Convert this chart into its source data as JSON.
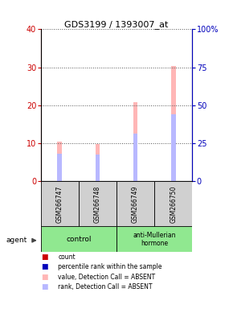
{
  "title": "GDS3199 / 1393007_at",
  "samples": [
    "GSM266747",
    "GSM266748",
    "GSM266749",
    "GSM266750"
  ],
  "bar_absent_value": [
    10.3,
    9.8,
    20.7,
    30.3
  ],
  "bar_absent_rank": [
    7.2,
    7.0,
    12.5,
    17.5
  ],
  "ylim_left": [
    0,
    40
  ],
  "ylim_right": [
    0,
    100
  ],
  "yticks_left": [
    0,
    10,
    20,
    30,
    40
  ],
  "ytick_labels_right": [
    "0",
    "25",
    "50",
    "75",
    "100%"
  ],
  "bar_width": 0.12,
  "bar_absent_color": "#ffb6b6",
  "bar_absent_rank_color": "#b8b8ff",
  "count_color": "#cc0000",
  "rank_color": "#0000bb",
  "grid_color": "#555555",
  "background_color": "#ffffff",
  "sample_box_color": "#d0d0d0",
  "control_group_color": "#90e890",
  "treated_group_color": "#90e890",
  "legend_items": [
    {
      "label": "count",
      "color": "#cc0000"
    },
    {
      "label": "percentile rank within the sample",
      "color": "#0000bb"
    },
    {
      "label": "value, Detection Call = ABSENT",
      "color": "#ffb6b6"
    },
    {
      "label": "rank, Detection Call = ABSENT",
      "color": "#b8b8ff"
    }
  ]
}
